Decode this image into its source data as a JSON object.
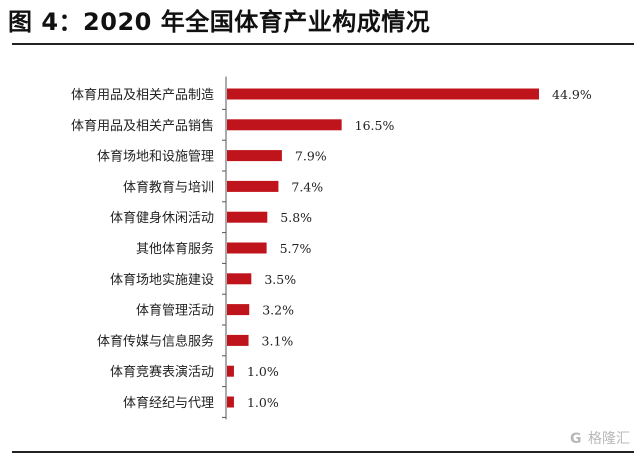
{
  "figure_title": "图 4：2020 年全国体育产业构成情况",
  "watermark": {
    "logo": "G",
    "text": "格隆汇"
  },
  "colors": {
    "bar": "#c0141c",
    "axis": "#555555",
    "text": "#222222"
  },
  "chart_data": {
    "type": "bar",
    "orientation": "horizontal",
    "title": "",
    "xlabel": "",
    "ylabel": "",
    "categories": [
      "体育用品及相关产品制造",
      "体育用品及相关产品销售",
      "体育场地和设施管理",
      "体育教育与培训",
      "体育健身休闲活动",
      "其他体育服务",
      "体育场地实施建设",
      "体育管理活动",
      "体育传媒与信息服务",
      "体育竞赛表演活动",
      "体育经纪与代理"
    ],
    "values": [
      44.9,
      16.5,
      7.9,
      7.4,
      5.8,
      5.7,
      3.5,
      3.2,
      3.1,
      1.0,
      1.0
    ],
    "data_labels": [
      "44.9%",
      "16.5%",
      "7.9%",
      "7.4%",
      "5.8%",
      "5.7%",
      "3.5%",
      "3.2%",
      "3.1%",
      "1.0%",
      "1.0%"
    ],
    "grid": false,
    "legend": "none"
  }
}
